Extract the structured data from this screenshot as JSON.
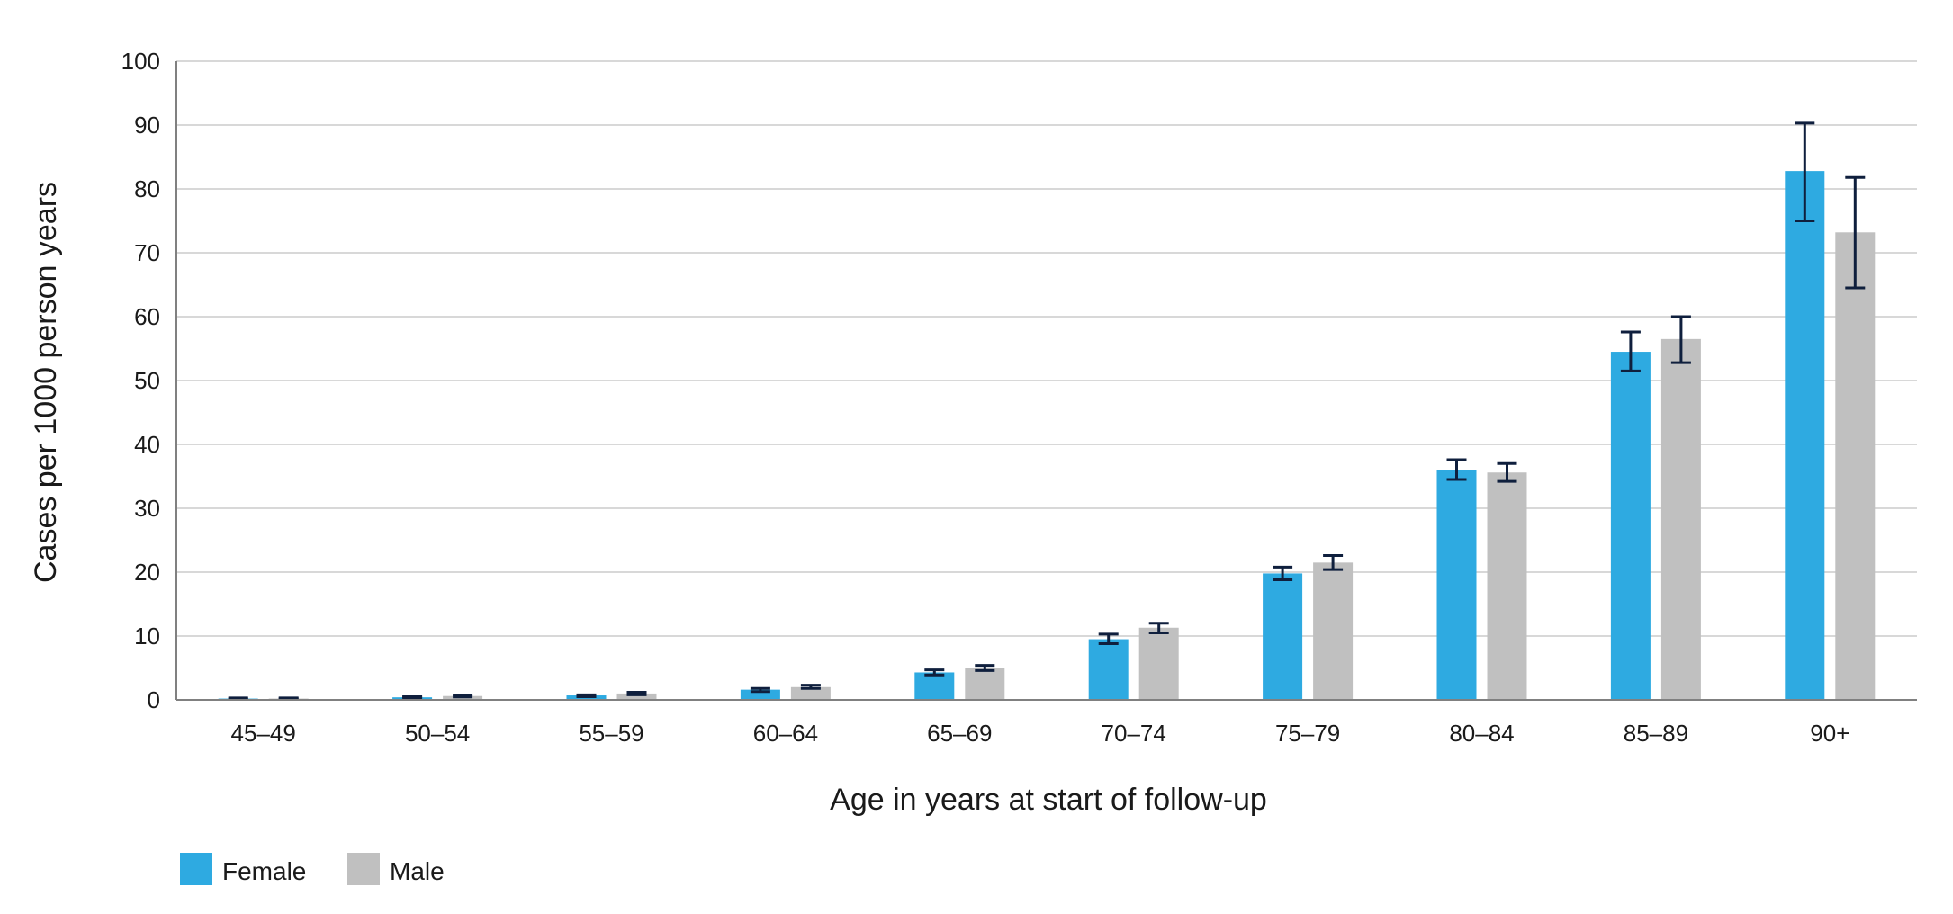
{
  "colors": {
    "female": "#2EAAE1",
    "male": "#C0C0C0",
    "error_bar": "#0F1F3D",
    "grid": "#CCCCCC",
    "axis": "#808080"
  },
  "chart_data": {
    "type": "bar",
    "title": "",
    "xlabel": "Age in years at start of follow-up",
    "ylabel": "Cases per 1000 person years",
    "ylim": [
      0,
      100
    ],
    "yticks": [
      0,
      10,
      20,
      30,
      40,
      50,
      60,
      70,
      80,
      90,
      100
    ],
    "grid": true,
    "legend_position": "bottom-left",
    "categories": [
      "45–49",
      "50–54",
      "55–59",
      "60–64",
      "65–69",
      "70–74",
      "75–79",
      "80–84",
      "85–89",
      "90+"
    ],
    "series": [
      {
        "name": "Female",
        "color": "#2EAAE1",
        "values": [
          0.2,
          0.4,
          0.7,
          1.6,
          4.3,
          9.5,
          19.8,
          36.0,
          54.5,
          82.8
        ],
        "ci_low": [
          0.15,
          0.3,
          0.5,
          1.3,
          3.9,
          8.8,
          18.8,
          34.5,
          51.5,
          75.0
        ],
        "ci_high": [
          0.3,
          0.5,
          0.8,
          1.8,
          4.7,
          10.3,
          20.8,
          37.6,
          57.6,
          90.3
        ]
      },
      {
        "name": "Male",
        "color": "#C0C0C0",
        "values": [
          0.2,
          0.6,
          1.0,
          2.0,
          5.0,
          11.3,
          21.5,
          35.6,
          56.5,
          73.2
        ],
        "ci_low": [
          0.15,
          0.45,
          0.8,
          1.8,
          4.6,
          10.5,
          20.4,
          34.2,
          52.8,
          64.5
        ],
        "ci_high": [
          0.3,
          0.75,
          1.2,
          2.3,
          5.4,
          12.0,
          22.6,
          37.0,
          60.0,
          81.8
        ]
      }
    ]
  }
}
